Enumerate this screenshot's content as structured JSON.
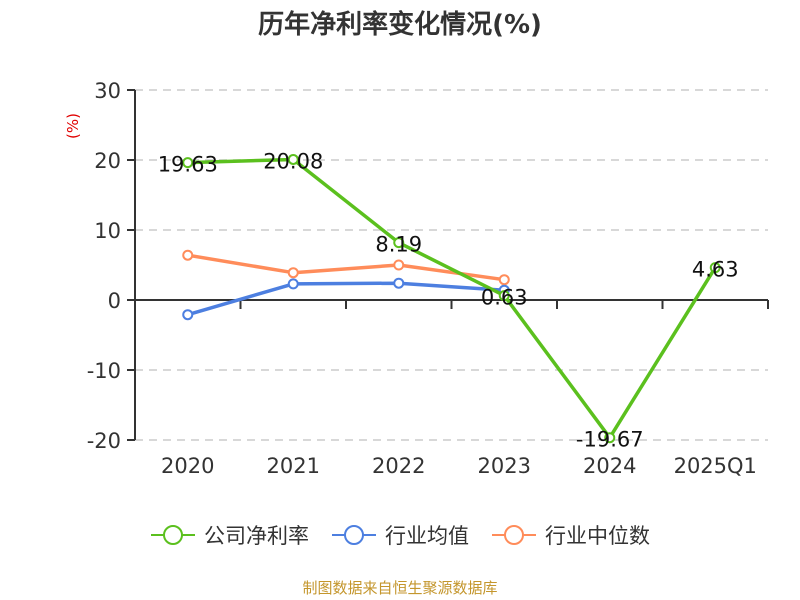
{
  "title": "历年净利率变化情况(%)",
  "y_unit_label": "(%)",
  "source": "制图数据来自恒生聚源数据库",
  "colors": {
    "company": "#5bc01e",
    "industry_avg": "#4d7fe0",
    "industry_median": "#ff8c5a",
    "axis": "#333333",
    "grid": "#cccccc",
    "unit_label": "#e00000",
    "source": "#c4962c"
  },
  "legend": [
    {
      "label": "公司净利率",
      "color": "#5bc01e"
    },
    {
      "label": "行业均值",
      "color": "#4d7fe0"
    },
    {
      "label": "行业中位数",
      "color": "#ff8c5a"
    }
  ],
  "chart_data": {
    "type": "line",
    "title": "历年净利率变化情况(%)",
    "xlabel": "",
    "ylabel": "(%)",
    "categories": [
      "2020",
      "2021",
      "2022",
      "2023",
      "2024",
      "2025Q1"
    ],
    "ylim": [
      -20,
      30
    ],
    "yticks": [
      30,
      20,
      10,
      0,
      -10,
      -20
    ],
    "grid": true,
    "legend_position": "bottom",
    "series": [
      {
        "name": "公司净利率",
        "values": [
          19.63,
          20.08,
          8.19,
          0.63,
          -19.67,
          4.63
        ],
        "labels": [
          "19.63",
          "20.08",
          "8.19",
          "0.63",
          "-19.67",
          "4.63"
        ]
      },
      {
        "name": "行业均值",
        "values": [
          -2.1,
          2.3,
          2.4,
          1.4,
          null,
          null
        ]
      },
      {
        "name": "行业中位数",
        "values": [
          6.4,
          3.9,
          5.0,
          2.9,
          null,
          null
        ]
      }
    ]
  }
}
